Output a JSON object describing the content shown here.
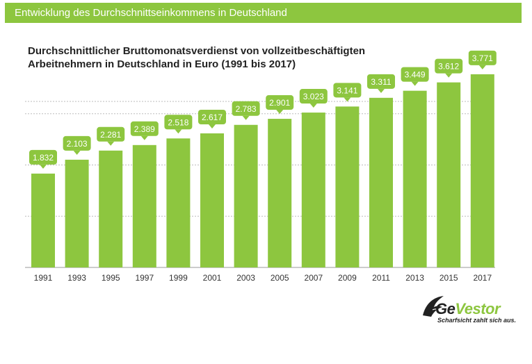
{
  "header": {
    "banner": "Entwicklung des Durchschnittseinkommens  in Deutschland"
  },
  "chart_data": {
    "type": "bar",
    "title_line1": "Durchschnittlicher Bruttomonatsverdienst von vollzeitbeschäftigten",
    "title_line2": "Arbeitnehmern in Deutschland in Euro (1991 bis 2017)",
    "categories": [
      "1991",
      "1993",
      "1995",
      "1997",
      "1999",
      "2001",
      "2003",
      "2005",
      "2007",
      "2009",
      "2011",
      "2013",
      "2015",
      "2017"
    ],
    "values": [
      1832,
      2103,
      2281,
      2389,
      2518,
      2617,
      2783,
      2901,
      3023,
      3141,
      3311,
      3449,
      3612,
      3771
    ],
    "labels": [
      "1.832",
      "2.103",
      "2.281",
      "2.389",
      "2.518",
      "2.617",
      "2.783",
      "2.901",
      "3.023",
      "3.141",
      "3.311",
      "3.449",
      "3.612",
      "3.771"
    ],
    "ylim": [
      0,
      4000
    ],
    "grid": true,
    "xlabel": "",
    "ylabel": "",
    "bar_color": "#8dc63f"
  },
  "logo": {
    "brand_ge": "Ge",
    "brand_vestor": "Vestor",
    "tagline": "Scharfsicht zahlt sich aus."
  }
}
